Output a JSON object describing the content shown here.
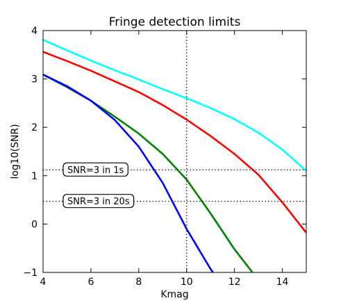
{
  "chart_data": {
    "type": "line",
    "title": "Fringe detection limits",
    "xlabel": "Kmag",
    "ylabel": "log10(SNR)",
    "xlim": [
      4,
      15
    ],
    "ylim": [
      -1,
      4
    ],
    "xticks": [
      "4",
      "6",
      "8",
      "10",
      "12",
      "14"
    ],
    "yticks": [
      "−1",
      "0",
      "1",
      "2",
      "3",
      "4"
    ],
    "grid": false,
    "legend": "none",
    "series": [
      {
        "color": "#00ffff",
        "x": [
          4,
          5,
          6,
          7,
          8,
          9,
          10,
          11,
          12,
          13,
          14,
          15
        ],
        "y": [
          3.81,
          3.59,
          3.38,
          3.18,
          2.99,
          2.79,
          2.6,
          2.4,
          2.17,
          1.89,
          1.54,
          1.1
        ]
      },
      {
        "color": "#ff0000",
        "x": [
          4,
          5,
          6,
          7,
          8,
          9,
          10,
          11,
          12,
          13,
          14,
          15
        ],
        "y": [
          3.56,
          3.37,
          3.17,
          2.95,
          2.73,
          2.46,
          2.16,
          1.82,
          1.45,
          1.02,
          0.45,
          -0.18
        ]
      },
      {
        "color": "#008000",
        "x": [
          4,
          5,
          6,
          7,
          8,
          9,
          10,
          11,
          12,
          12.75
        ],
        "y": [
          3.09,
          2.83,
          2.55,
          2.22,
          1.87,
          1.45,
          0.92,
          0.22,
          -0.52,
          -1.0
        ]
      },
      {
        "color": "#0000ff",
        "x": [
          4,
          5,
          6,
          7,
          8,
          9,
          10,
          11,
          11.1
        ],
        "y": [
          3.09,
          2.85,
          2.55,
          2.15,
          1.6,
          0.85,
          -0.1,
          -0.93,
          -1.0
        ]
      }
    ],
    "reference_lines": {
      "vertical_x": 10,
      "horizontal": [
        {
          "y": 1.12,
          "label": "SNR=3 in 1s"
        },
        {
          "y": 0.47,
          "label": "SNR=3 in 20s"
        }
      ]
    }
  }
}
